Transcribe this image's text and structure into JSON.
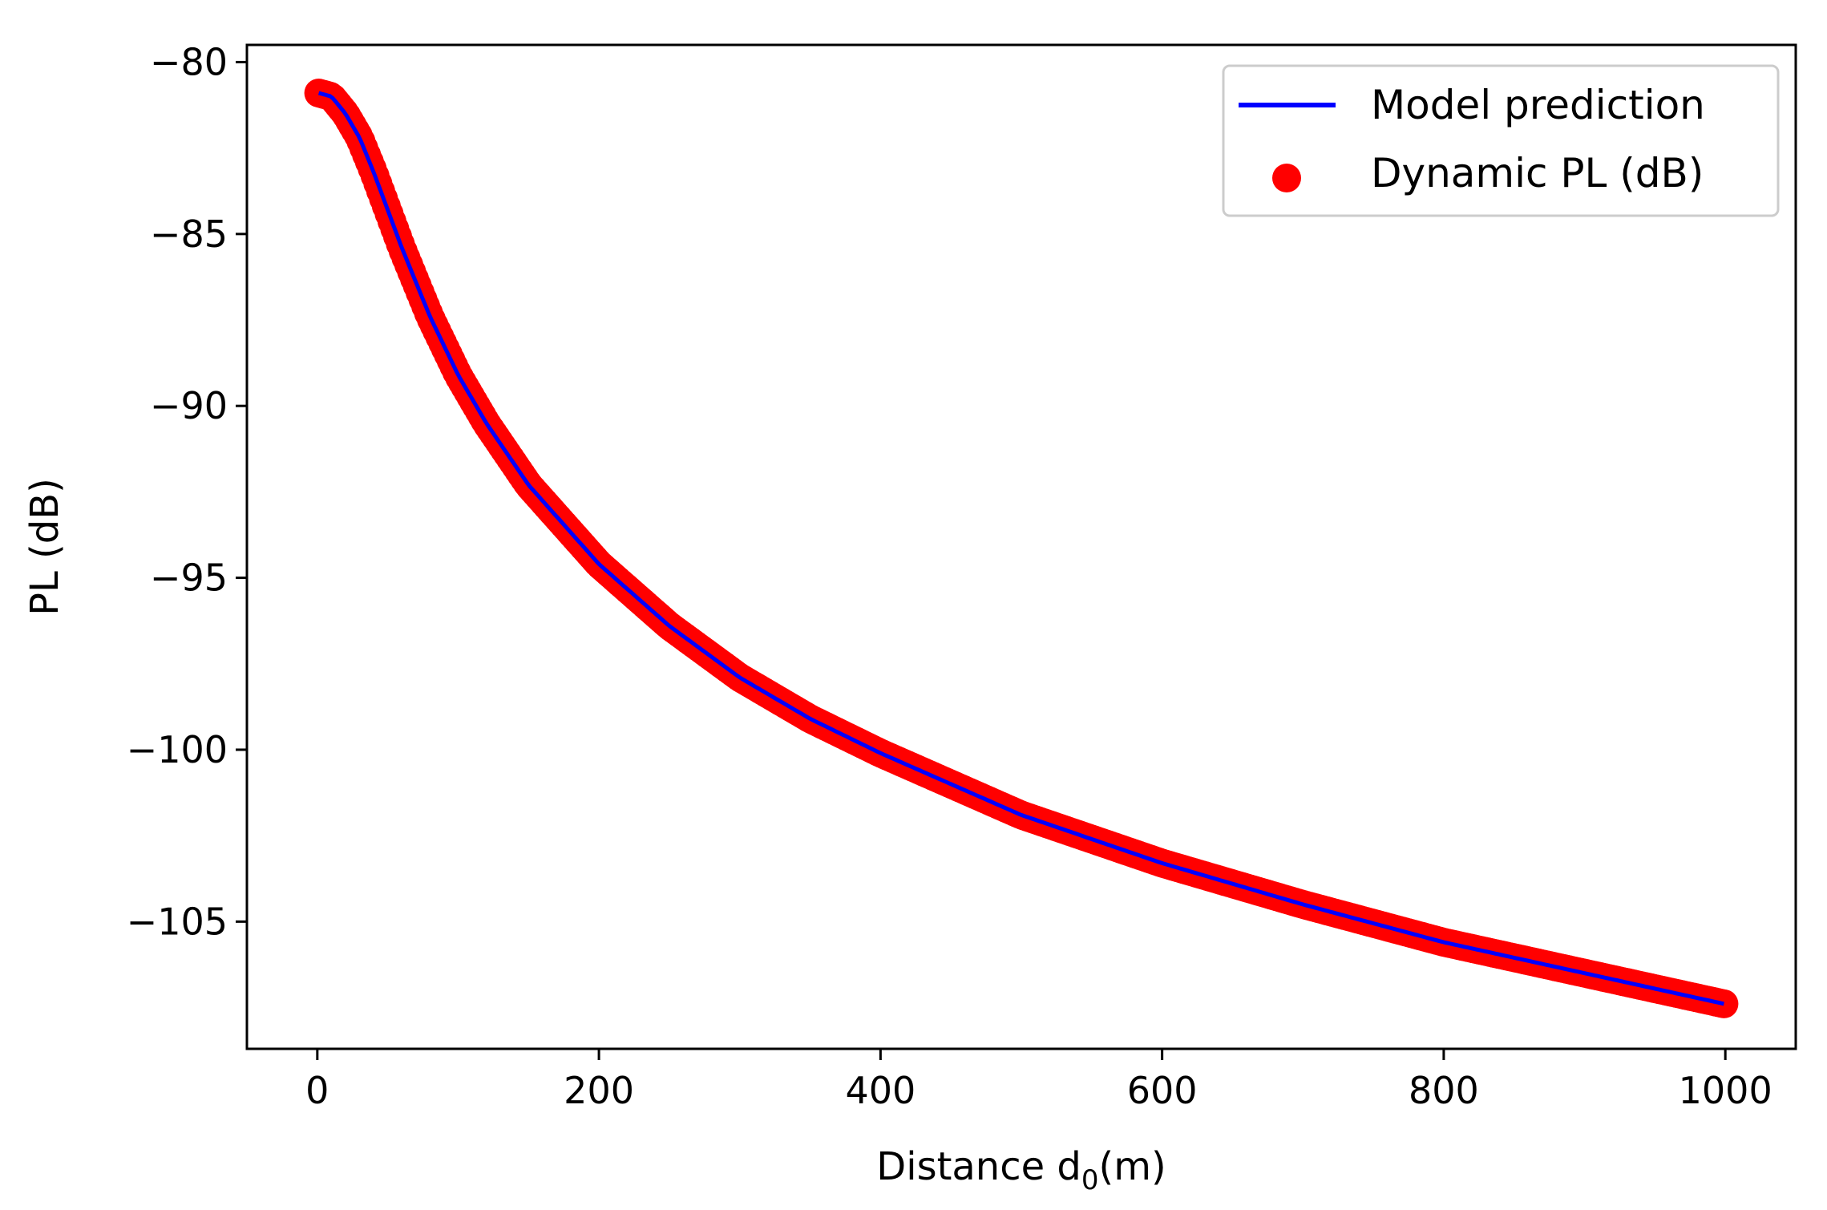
{
  "chart_data": {
    "type": "line",
    "title": "",
    "xlabel": "Distance d",
    "xlabel_subscript": "0",
    "xlabel_suffix": "(m)",
    "ylabel": "PL (dB)",
    "xlim": [
      -50,
      1050
    ],
    "ylim": [
      -108.7,
      -79.5
    ],
    "xticks": [
      0,
      200,
      400,
      600,
      800,
      1000
    ],
    "yticks": [
      -80,
      -85,
      -90,
      -95,
      -100,
      -105
    ],
    "grid": false,
    "legend_position": "top-right",
    "x": [
      1,
      10,
      20,
      30,
      40,
      50,
      60,
      70,
      80,
      100,
      120,
      150,
      200,
      250,
      300,
      350,
      400,
      450,
      500,
      600,
      700,
      800,
      900,
      1000
    ],
    "series": [
      {
        "name": "Model prediction",
        "kind": "line",
        "color": "#0000ff",
        "values": [
          -80.9,
          -81.0,
          -81.5,
          -82.2,
          -83.2,
          -84.3,
          -85.4,
          -86.4,
          -87.4,
          -89.1,
          -90.5,
          -92.3,
          -94.6,
          -96.4,
          -97.9,
          -99.1,
          -100.1,
          -101.0,
          -101.9,
          -103.3,
          -104.5,
          -105.6,
          -106.5,
          -107.4
        ]
      },
      {
        "name": "Dynamic PL (dB)",
        "kind": "scatter",
        "color": "#ff0000",
        "values": [
          -80.9,
          -81.0,
          -81.5,
          -82.2,
          -83.2,
          -84.3,
          -85.4,
          -86.4,
          -87.4,
          -89.1,
          -90.5,
          -92.3,
          -94.6,
          -96.4,
          -97.9,
          -99.1,
          -100.1,
          -101.0,
          -101.9,
          -103.3,
          -104.5,
          -105.6,
          -106.5,
          -107.4
        ]
      }
    ]
  }
}
